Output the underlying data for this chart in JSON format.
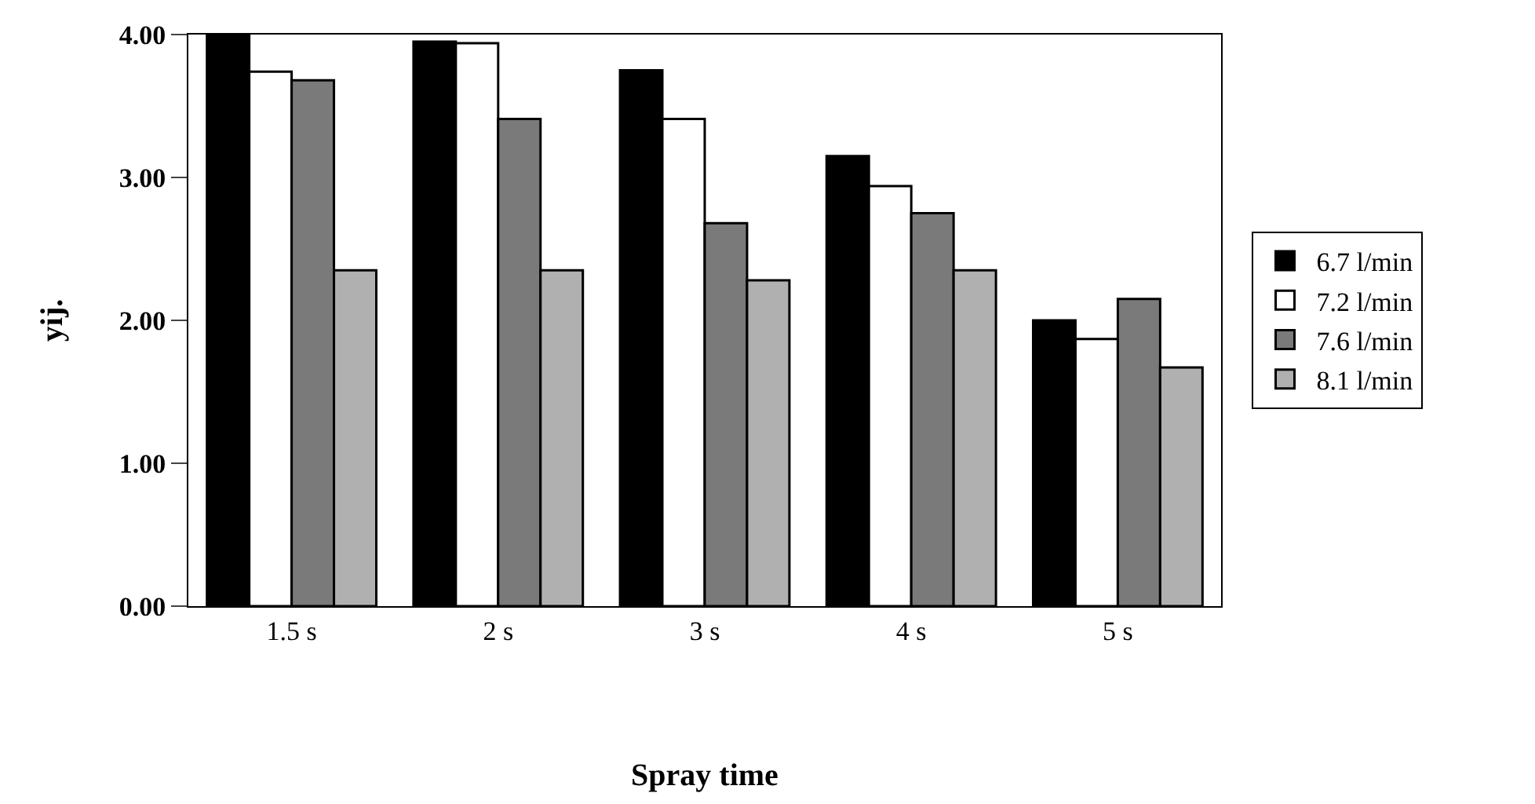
{
  "chart_data": {
    "type": "bar",
    "xlabel": "Spray time",
    "ylabel": "yij.",
    "categories": [
      "1.5 s",
      "2 s",
      "3 s",
      "4 s",
      "5 s"
    ],
    "series": [
      {
        "name": "6.7 l/min",
        "color": "#000000",
        "values": [
          4.0,
          3.95,
          3.75,
          3.15,
          2.0
        ]
      },
      {
        "name": "7.2 l/min",
        "color": "#ffffff",
        "values": [
          3.74,
          3.94,
          3.41,
          2.94,
          1.87
        ]
      },
      {
        "name": "7.6 l/min",
        "color": "#7a7a7a",
        "values": [
          3.68,
          3.41,
          2.68,
          2.75,
          2.15
        ]
      },
      {
        "name": "8.1 l/min",
        "color": "#b0b0b0",
        "values": [
          2.35,
          2.35,
          2.28,
          2.35,
          1.67
        ]
      }
    ],
    "ylim": [
      0,
      4
    ],
    "yticks": [
      {
        "value": 0,
        "label": "0.00"
      },
      {
        "value": 1,
        "label": "1.00"
      },
      {
        "value": 2,
        "label": "2.00"
      },
      {
        "value": 3,
        "label": "3.00"
      },
      {
        "value": 4,
        "label": "4.00"
      }
    ],
    "legend": "right"
  }
}
